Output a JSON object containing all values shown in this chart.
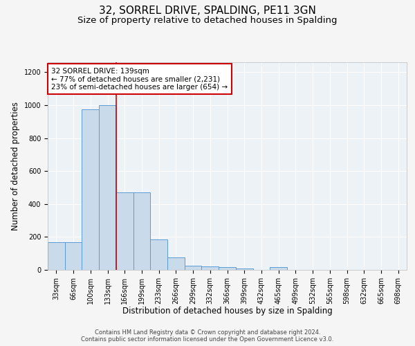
{
  "title": "32, SORREL DRIVE, SPALDING, PE11 3GN",
  "subtitle": "Size of property relative to detached houses in Spalding",
  "xlabel": "Distribution of detached houses by size in Spalding",
  "ylabel": "Number of detached properties",
  "categories": [
    "33sqm",
    "66sqm",
    "100sqm",
    "133sqm",
    "166sqm",
    "199sqm",
    "233sqm",
    "266sqm",
    "299sqm",
    "332sqm",
    "366sqm",
    "399sqm",
    "432sqm",
    "465sqm",
    "499sqm",
    "532sqm",
    "565sqm",
    "598sqm",
    "632sqm",
    "665sqm",
    "698sqm"
  ],
  "values": [
    170,
    170,
    975,
    1000,
    470,
    470,
    185,
    75,
    25,
    20,
    15,
    10,
    0,
    15,
    0,
    0,
    0,
    0,
    0,
    0,
    0
  ],
  "bar_color": "#c9daea",
  "bar_edge_color": "#5b9bd5",
  "red_line_x": 3.5,
  "annotation_line1": "32 SORREL DRIVE: 139sqm",
  "annotation_line2": "← 77% of detached houses are smaller (2,231)",
  "annotation_line3": "23% of semi-detached houses are larger (654) →",
  "annotation_box_color": "#ffffff",
  "annotation_box_edge": "#cc0000",
  "red_line_color": "#cc0000",
  "background_color": "#edf2f7",
  "grid_color": "#ffffff",
  "ylim": [
    0,
    1260
  ],
  "yticks": [
    0,
    200,
    400,
    600,
    800,
    1000,
    1200
  ],
  "footer_line1": "Contains HM Land Registry data © Crown copyright and database right 2024.",
  "footer_line2": "Contains public sector information licensed under the Open Government Licence v3.0.",
  "title_fontsize": 11,
  "subtitle_fontsize": 9.5,
  "xlabel_fontsize": 8.5,
  "ylabel_fontsize": 8.5,
  "tick_fontsize": 7,
  "annotation_fontsize": 7.5,
  "footer_fontsize": 6
}
